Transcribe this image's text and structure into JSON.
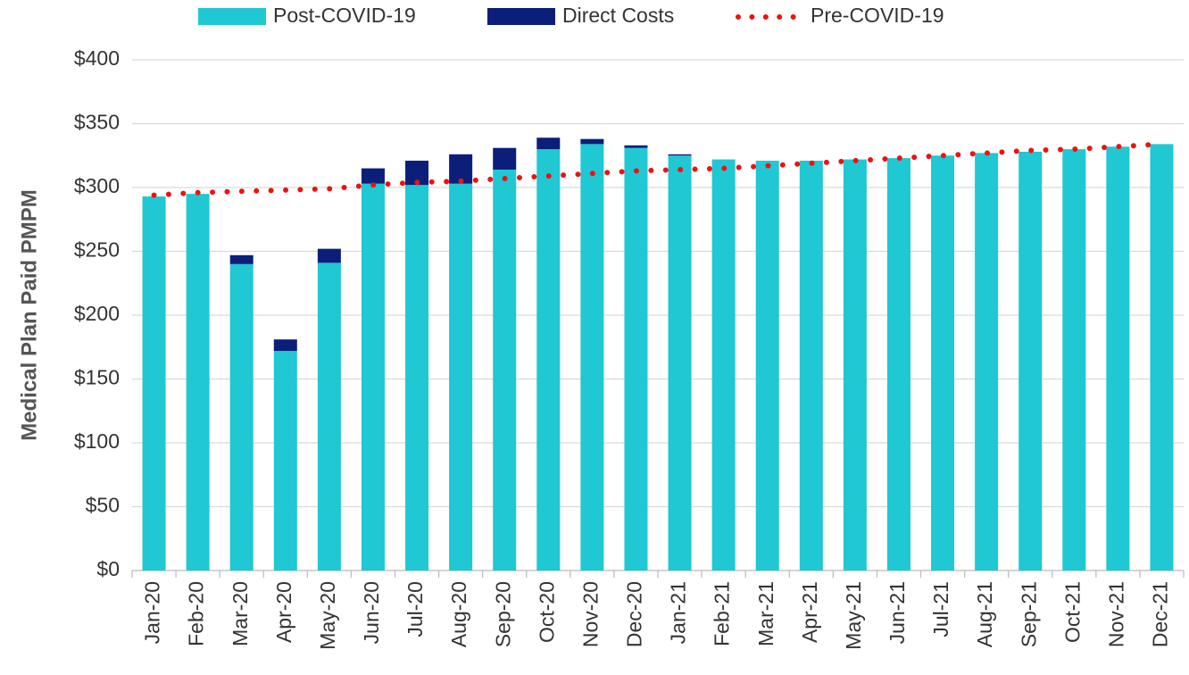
{
  "chart_data": {
    "type": "stacked_bar_line",
    "y_axis_label": "Medical Plan Paid PMPM",
    "categories": [
      "Jan-20",
      "Feb-20",
      "Mar-20",
      "Apr-20",
      "May-20",
      "Jun-20",
      "Jul-20",
      "Aug-20",
      "Sep-20",
      "Oct-20",
      "Nov-20",
      "Dec-20",
      "Jan-21",
      "Feb-21",
      "Mar-21",
      "Apr-21",
      "May-21",
      "Jun-21",
      "Jul-21",
      "Aug-21",
      "Sep-21",
      "Oct-21",
      "Nov-21",
      "Dec-21"
    ],
    "series": [
      {
        "name": "Post-COVID-19",
        "color": "#1fc8d3",
        "kind": "bar",
        "values": [
          293,
          295,
          240,
          172,
          241,
          303,
          302,
          303,
          314,
          330,
          334,
          331,
          325,
          322,
          321,
          321,
          322,
          323,
          325,
          327,
          328,
          330,
          332,
          334
        ]
      },
      {
        "name": "Direct Costs",
        "color": "#0b1f7a",
        "kind": "bar",
        "values": [
          0,
          0,
          7,
          9,
          11,
          12,
          19,
          23,
          17,
          9,
          4,
          2,
          1,
          0,
          0,
          0,
          0,
          0,
          0,
          0,
          0,
          0,
          0,
          0
        ]
      },
      {
        "name": "Pre-COVID-19",
        "color": "#ee1111",
        "kind": "dotted_line",
        "values": [
          294,
          296,
          297,
          298,
          299,
          302,
          304,
          305,
          307,
          309,
          311,
          313,
          314,
          315,
          317,
          319,
          321,
          323,
          325,
          327,
          329,
          330,
          332,
          334
        ]
      }
    ],
    "ylim": [
      0,
      400
    ],
    "yticks": [
      {
        "value": 0,
        "label": "$0"
      },
      {
        "value": 50,
        "label": "$50"
      },
      {
        "value": 100,
        "label": "$100"
      },
      {
        "value": 150,
        "label": "$150"
      },
      {
        "value": 200,
        "label": "$200"
      },
      {
        "value": 250,
        "label": "$250"
      },
      {
        "value": 300,
        "label": "$300"
      },
      {
        "value": 350,
        "label": "$350"
      },
      {
        "value": 400,
        "label": "$400"
      }
    ],
    "grid": true,
    "legend": "top"
  }
}
